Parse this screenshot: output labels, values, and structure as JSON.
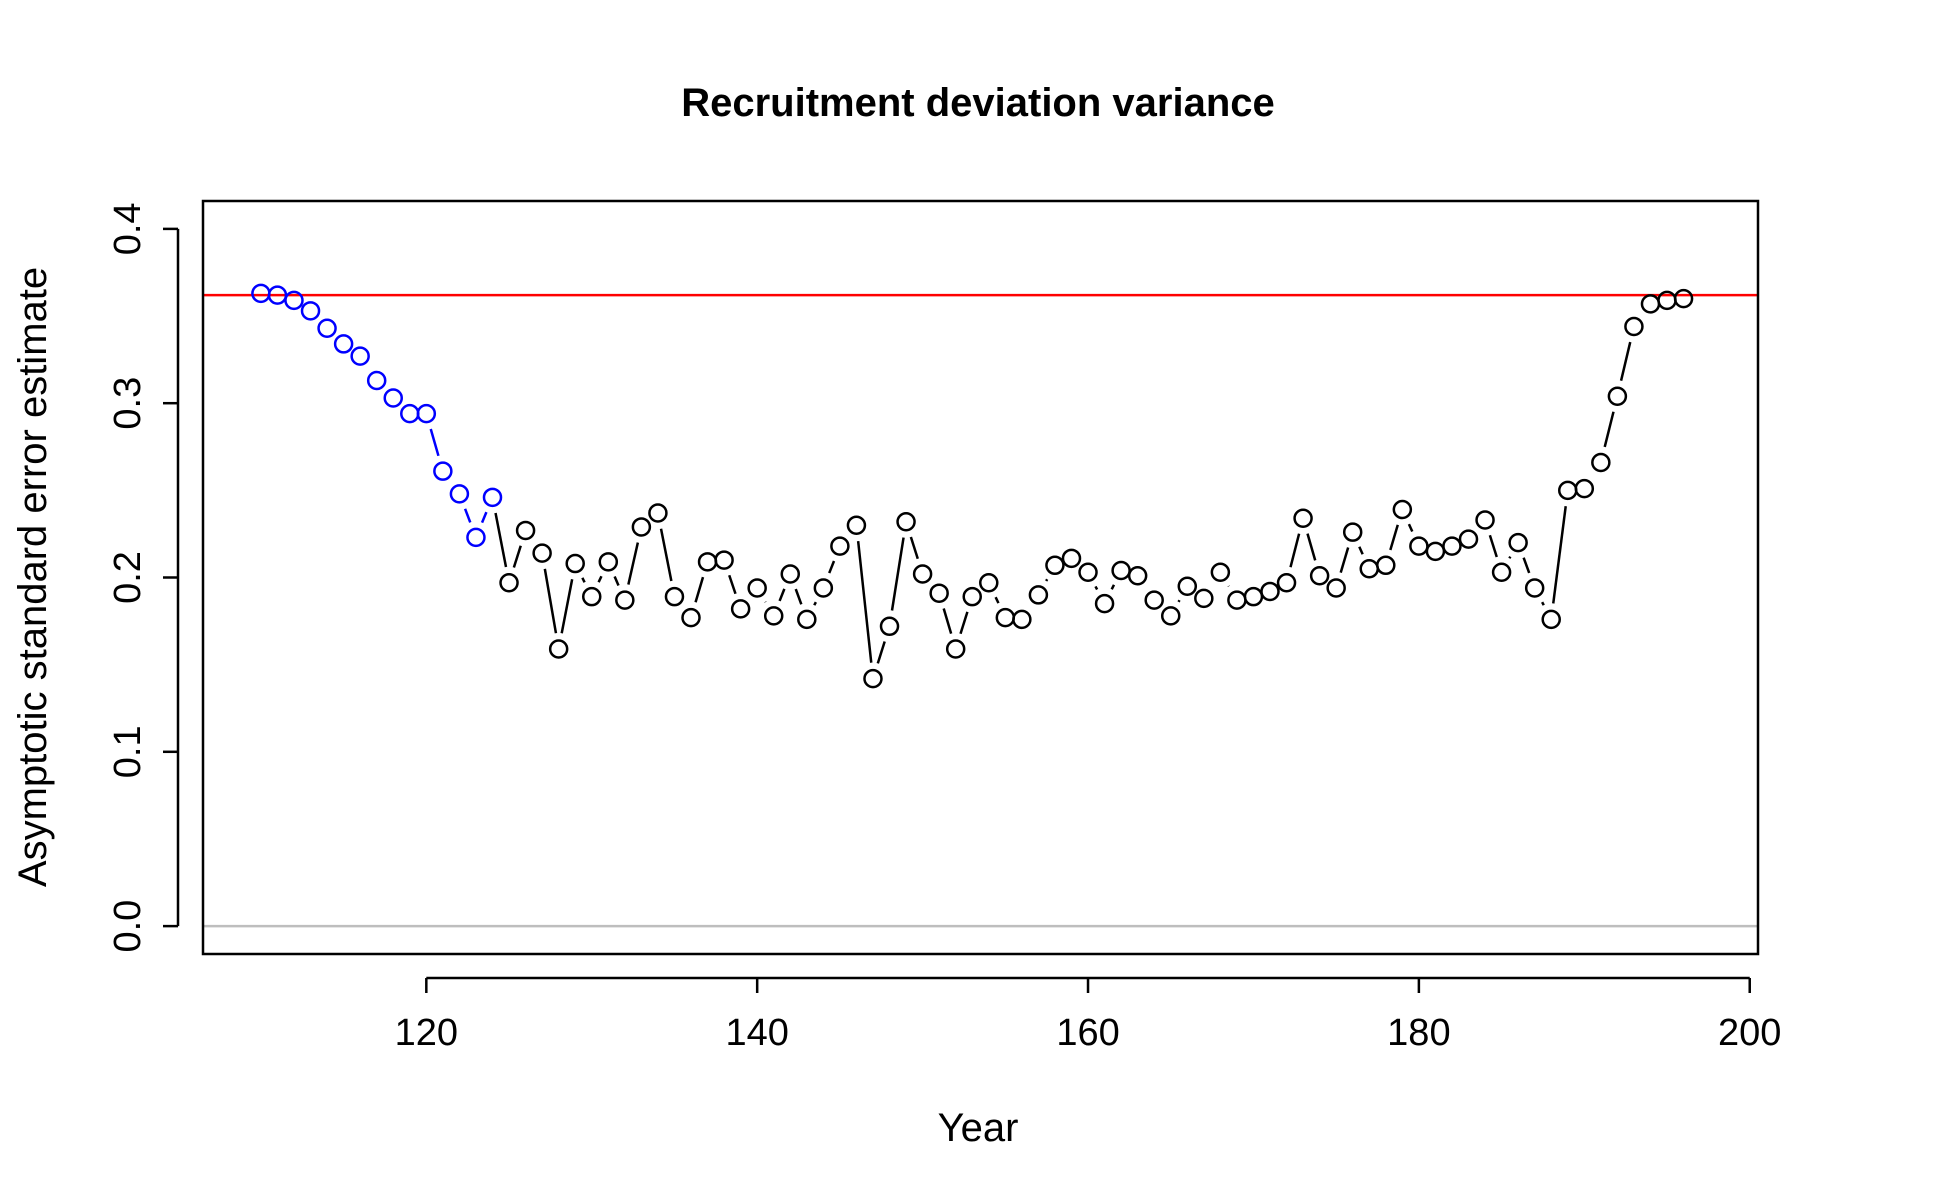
{
  "chart_data": {
    "type": "scatter",
    "title": "Recruitment deviation variance",
    "xlabel": "Year",
    "ylabel": "Asymptotic standard error estimate",
    "xlim": [
      106.5,
      200.5
    ],
    "ylim": [
      -0.016,
      0.416
    ],
    "x_ticks": [
      120,
      140,
      160,
      180,
      200
    ],
    "y_ticks": [
      0.0,
      0.1,
      0.2,
      0.3,
      0.4
    ],
    "x_tick_labels": [
      "120",
      "140",
      "160",
      "180",
      "200"
    ],
    "y_tick_labels": [
      "0.0",
      "0.1",
      "0.2",
      "0.3",
      "0.4"
    ],
    "reference_lines": [
      {
        "y": 0.362,
        "color": "#ff0000"
      },
      {
        "y": 0.0,
        "color": "#bebebe"
      }
    ],
    "grid": false,
    "legend": "none",
    "point_style": "open-circle",
    "connector_style": "broken-line",
    "series": [
      {
        "color": "#0000ff",
        "x": [
          110,
          111,
          112,
          113,
          114,
          115,
          116,
          117,
          118,
          119,
          120,
          121,
          122,
          123,
          124
        ],
        "y": [
          0.363,
          0.362,
          0.359,
          0.353,
          0.343,
          0.334,
          0.327,
          0.313,
          0.303,
          0.294,
          0.294,
          0.261,
          0.248,
          0.223,
          0.246
        ]
      },
      {
        "color": "#000000",
        "x": [
          125,
          126,
          127,
          128,
          129,
          130,
          131,
          132,
          133,
          134,
          135,
          136,
          137,
          138,
          139,
          140,
          141,
          142,
          143,
          144,
          145,
          146,
          147,
          148,
          149,
          150,
          151,
          152,
          153,
          154,
          155,
          156,
          157,
          158,
          159,
          160,
          161,
          162,
          163,
          164,
          165,
          166,
          167,
          168,
          169,
          170,
          171,
          172,
          173,
          174,
          175,
          176,
          177,
          178,
          179,
          180,
          181,
          182,
          183,
          184,
          185,
          186,
          187,
          188,
          189,
          190,
          191,
          192,
          193,
          194,
          195,
          196
        ],
        "y": [
          0.197,
          0.227,
          0.214,
          0.159,
          0.208,
          0.189,
          0.209,
          0.187,
          0.229,
          0.237,
          0.189,
          0.177,
          0.209,
          0.21,
          0.182,
          0.194,
          0.178,
          0.202,
          0.176,
          0.194,
          0.218,
          0.23,
          0.142,
          0.172,
          0.232,
          0.202,
          0.191,
          0.159,
          0.189,
          0.197,
          0.177,
          0.176,
          0.19,
          0.207,
          0.211,
          0.203,
          0.185,
          0.204,
          0.201,
          0.187,
          0.178,
          0.195,
          0.188,
          0.203,
          0.187,
          0.189,
          0.192,
          0.197,
          0.234,
          0.201,
          0.194,
          0.226,
          0.205,
          0.207,
          0.239,
          0.218,
          0.215,
          0.218,
          0.222,
          0.233,
          0.203,
          0.22,
          0.194,
          0.176,
          0.25,
          0.251,
          0.266,
          0.304,
          0.344,
          0.357,
          0.359,
          0.36
        ]
      }
    ]
  }
}
